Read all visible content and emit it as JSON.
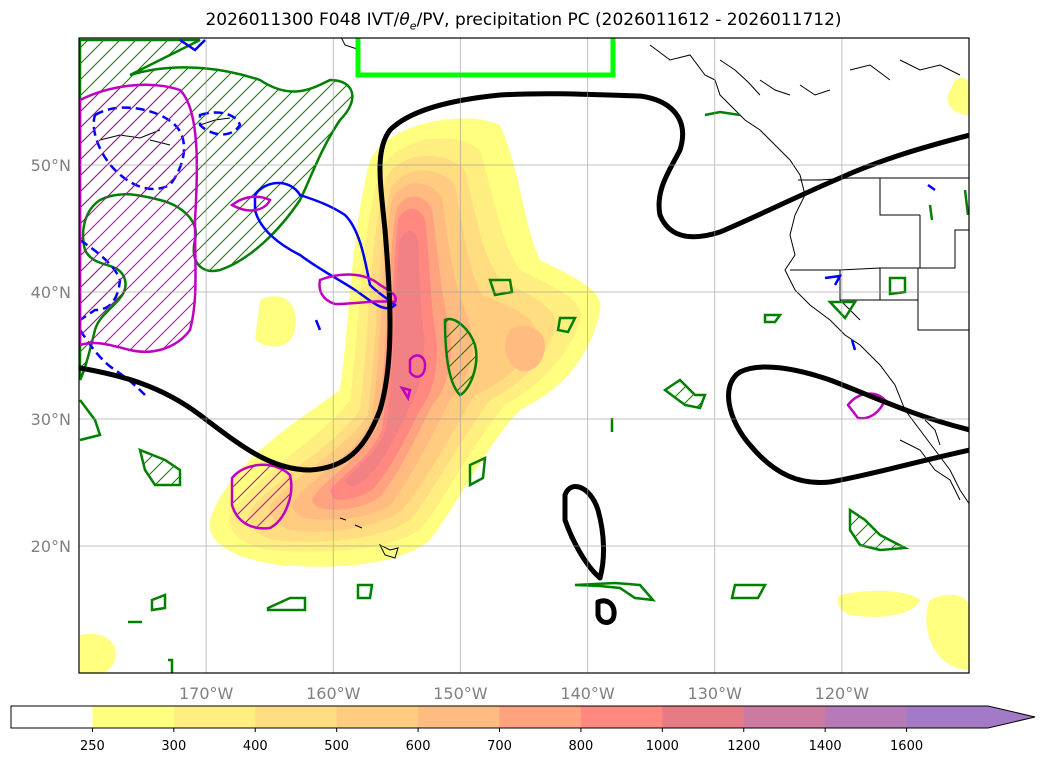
{
  "title": {
    "init": "2026011300 F048 IVT/",
    "theta_symbol": "θ",
    "theta_sub": "e",
    "rest": "/PV, precipitation PC (2026011612 - 2026011712)"
  },
  "map": {
    "lon_range": [
      -180,
      -110
    ],
    "lat_range": [
      10,
      60
    ],
    "lat_labels": [
      {
        "lat": 50,
        "text": "50°N"
      },
      {
        "lat": 40,
        "text": "40°N"
      },
      {
        "lat": 30,
        "text": "30°N"
      },
      {
        "lat": 20,
        "text": "20°N"
      }
    ],
    "lon_labels": [
      {
        "lon": -170,
        "text": "170°W"
      },
      {
        "lon": -160,
        "text": "160°W"
      },
      {
        "lon": -150,
        "text": "150°W"
      },
      {
        "lon": -140,
        "text": "140°W"
      },
      {
        "lon": -130,
        "text": "130°W"
      },
      {
        "lon": -120,
        "text": "120°W"
      }
    ],
    "gridlines": true
  },
  "colorbar": {
    "levels": [
      "250",
      "300",
      "400",
      "500",
      "600",
      "700",
      "800",
      "1000",
      "1200",
      "1400",
      "1600"
    ],
    "colors": [
      "#ffffff",
      "#ffff80",
      "#ffee80",
      "#ffdd80",
      "#ffcc80",
      "#ffbb80",
      "#ffa280",
      "#ff8880",
      "#e67a85",
      "#cc7aa0",
      "#b77ab8",
      "#a37ac8"
    ],
    "extend": "max"
  },
  "colors": {
    "green_pv": "#008000",
    "blue_dashed": "#0000ff",
    "magenta": "#c000c0",
    "black_theta": "#000000",
    "lime_box": "#00ff00"
  }
}
